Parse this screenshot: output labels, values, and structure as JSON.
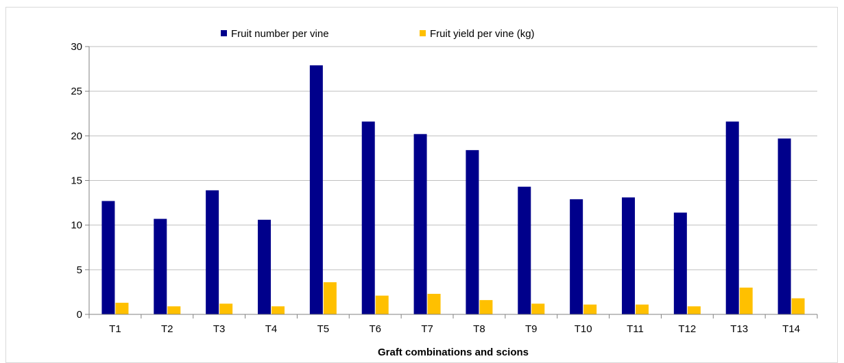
{
  "chart_data": {
    "type": "bar",
    "title": "",
    "xlabel": "Graft combinations and scions",
    "ylabel": "",
    "ylim": [
      0,
      30
    ],
    "yticks": [
      0,
      5,
      10,
      15,
      20,
      25,
      30
    ],
    "grid": true,
    "legend_position": "top",
    "categories": [
      "T1",
      "T2",
      "T3",
      "T4",
      "T5",
      "T6",
      "T7",
      "T8",
      "T9",
      "T10",
      "T11",
      "T12",
      "T13",
      "T14"
    ],
    "series": [
      {
        "name": "Fruit number per vine",
        "color": "#00008b",
        "values": [
          12.7,
          10.7,
          13.9,
          10.6,
          27.9,
          21.6,
          20.2,
          18.4,
          14.3,
          12.9,
          13.1,
          11.4,
          21.6,
          19.7
        ]
      },
      {
        "name": "Fruit yield per vine (kg)",
        "color": "#ffc000",
        "values": [
          1.3,
          0.9,
          1.2,
          0.9,
          3.6,
          2.1,
          2.3,
          1.6,
          1.2,
          1.1,
          1.1,
          0.9,
          3.0,
          1.8
        ]
      }
    ]
  }
}
